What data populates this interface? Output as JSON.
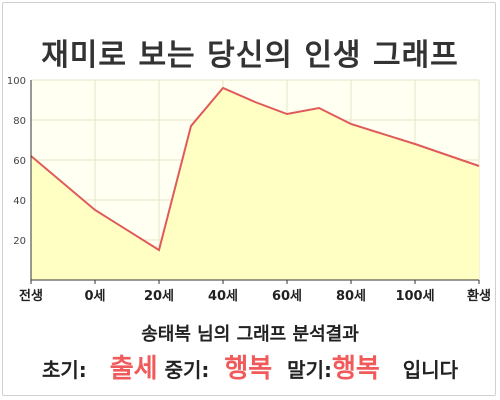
{
  "title": "재미로 보는 당신의 인생 그래프",
  "chart_data": {
    "type": "area",
    "title": "재미로 보는 당신의 인생 그래프",
    "x": [
      0,
      10,
      20,
      25,
      30,
      35,
      40,
      45,
      50,
      60,
      70
    ],
    "y": [
      62,
      35,
      15,
      77,
      96,
      89,
      83,
      86,
      78,
      68,
      57
    ],
    "x_tick_labels": [
      "전생",
      "0세",
      "20세",
      "40세",
      "60세",
      "80세",
      "100세",
      "환생"
    ],
    "y_ticks": [
      20,
      40,
      60,
      80,
      100
    ],
    "ylim": [
      0,
      100
    ],
    "grid": true,
    "line_color": "#e05a5a",
    "fill_color": "#ffffc4"
  },
  "summary": {
    "name_line": "송태복 님의 그래프 분석결과",
    "early_label": "초기:",
    "early_value": "출세",
    "middle_label": "중기:",
    "middle_value": "행복",
    "late_label": "말기:",
    "late_value": "행복",
    "ending": "입니다"
  },
  "colors": {
    "highlight": "#f05a5a",
    "text": "#222222"
  }
}
